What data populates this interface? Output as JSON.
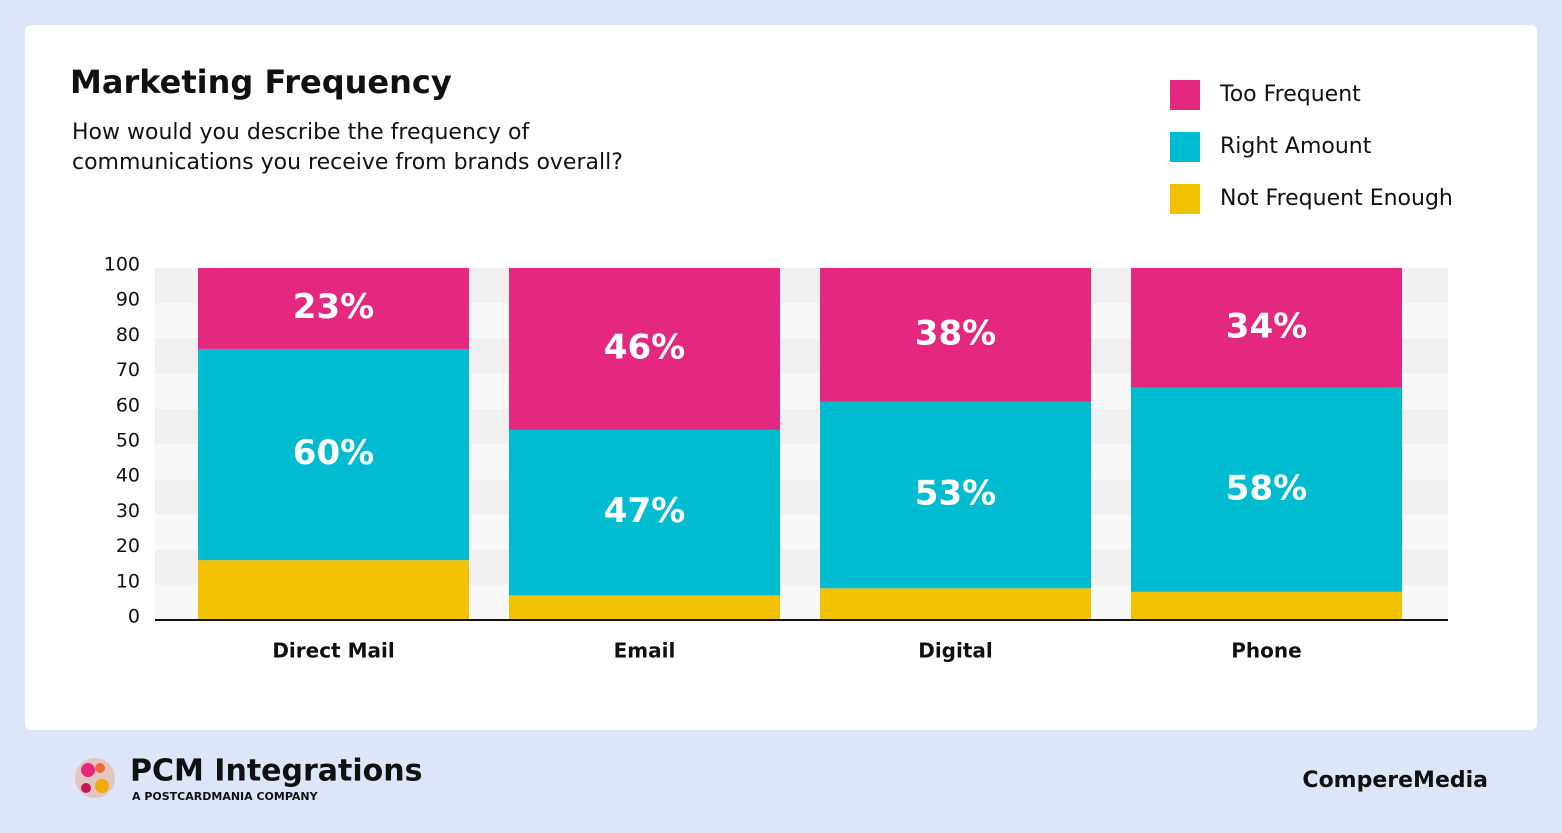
{
  "chart_data": {
    "type": "stacked_bar",
    "title": "Marketing Frequency",
    "subtitle": [
      "How would you describe the frequency of",
      "communications you receive from brands overall?"
    ],
    "categories": [
      "Direct Mail",
      "Email",
      "Digital",
      "Phone"
    ],
    "series": [
      {
        "name": "Not Frequent Enough",
        "color": "#f2c200",
        "values": [
          17,
          7,
          9,
          8
        ]
      },
      {
        "name": "Right Amount",
        "color": "#00bcd0",
        "values": [
          60,
          47,
          53,
          58
        ],
        "value_labels": [
          "60%",
          "47%",
          "53%",
          "58%"
        ]
      },
      {
        "name": "Too Frequent",
        "color": "#e5287f",
        "values": [
          23,
          46,
          38,
          34
        ],
        "value_labels": [
          "23%",
          "46%",
          "38%",
          "34%"
        ]
      }
    ],
    "ylim": [
      0,
      100
    ],
    "yticks": [
      0,
      10,
      20,
      30,
      40,
      50,
      60,
      70,
      80,
      90,
      100
    ],
    "grid": true
  },
  "footer": {
    "brand": "PCM Integrations",
    "tagline": "A POSTCARDMANIA COMPANY",
    "partner": "CompereMedia"
  }
}
